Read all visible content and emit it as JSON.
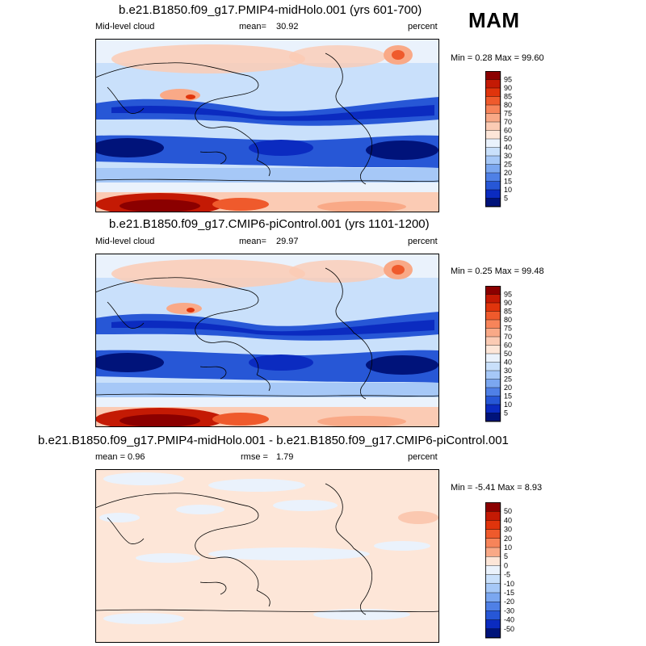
{
  "season": "MAM",
  "panels": [
    {
      "title": "b.e21.B1850.f09_g17.PMIP4-midHolo.001 (yrs 601-700)",
      "left_label": "Mid-level cloud",
      "stat_label": "mean=",
      "stat_value": "30.92",
      "units": "percent",
      "minmax": "Min =  0.28 Max =  99.60"
    },
    {
      "title": "b.e21.B1850.f09_g17.CMIP6-piControl.001 (yrs 1101-1200)",
      "left_label": "Mid-level cloud",
      "stat_label": "mean=",
      "stat_value": "29.97",
      "units": "percent",
      "minmax": "Min =  0.25 Max =  99.48"
    },
    {
      "title": "b.e21.B1850.f09_g17.PMIP4-midHolo.001 - b.e21.B1850.f09_g17.CMIP6-piControl.001",
      "left_label": "mean =   0.96",
      "stat_label": "rmse =",
      "stat_value": "1.79",
      "units": "percent",
      "minmax": "Min =  -5.41 Max =   8.93"
    }
  ],
  "colorbars": {
    "abs": {
      "labels": [
        "95",
        "90",
        "85",
        "80",
        "75",
        "70",
        "60",
        "50",
        "40",
        "30",
        "25",
        "20",
        "15",
        "10",
        "5"
      ],
      "colors": [
        "#8b0000",
        "#c41a04",
        "#e0340c",
        "#ef5a2c",
        "#f7845a",
        "#f9a987",
        "#fbcbb4",
        "#fde6d8",
        "#eaf2fc",
        "#c9e0fb",
        "#a6c8f7",
        "#7ba7f0",
        "#4f80e6",
        "#2757d6",
        "#0b2bc0",
        "#00137a"
      ]
    },
    "diff": {
      "labels": [
        "50",
        "40",
        "30",
        "20",
        "10",
        "5",
        "0",
        "-5",
        "-10",
        "-15",
        "-20",
        "-30",
        "-40",
        "-50"
      ],
      "colors": [
        "#8b0000",
        "#c41a04",
        "#e0340c",
        "#ef5a2c",
        "#f7845a",
        "#f9a987",
        "#fde6d8",
        "#eaf2fc",
        "#c9e0fb",
        "#a6c8f7",
        "#7ba7f0",
        "#4f80e6",
        "#2757d6",
        "#0b2bc0",
        "#00137a"
      ]
    }
  }
}
